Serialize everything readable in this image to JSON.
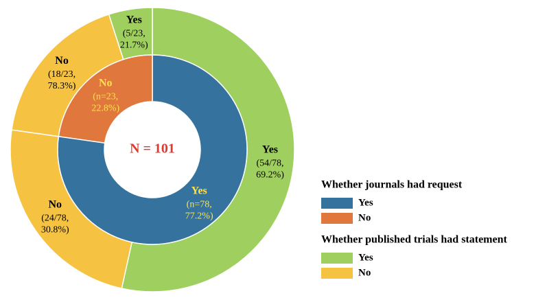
{
  "chart_data": {
    "type": "sunburst",
    "center_label": "N = 101",
    "inner": {
      "name": "Whether journals had request",
      "categories": [
        "Yes",
        "No"
      ],
      "values": [
        78,
        23
      ],
      "value_labels": [
        "(n=78, 77.2%)",
        "(n=23, 22.8%)"
      ],
      "colors": [
        "#35739e",
        "#e0783e"
      ]
    },
    "outer": {
      "name": "Whether published trials had statement",
      "categories": [
        "Yes",
        "No",
        "No",
        "Yes"
      ],
      "values": [
        54,
        24,
        18,
        5
      ],
      "value_labels": [
        "(54/78, 69.2%)",
        "(24/78, 30.8%)",
        "(18/23, 78.3%)",
        "(5/23, 21.7%)"
      ],
      "colors": [
        "#9fcf5e",
        "#f5c242",
        "#f5c242",
        "#9fcf5e"
      ]
    }
  }
}
